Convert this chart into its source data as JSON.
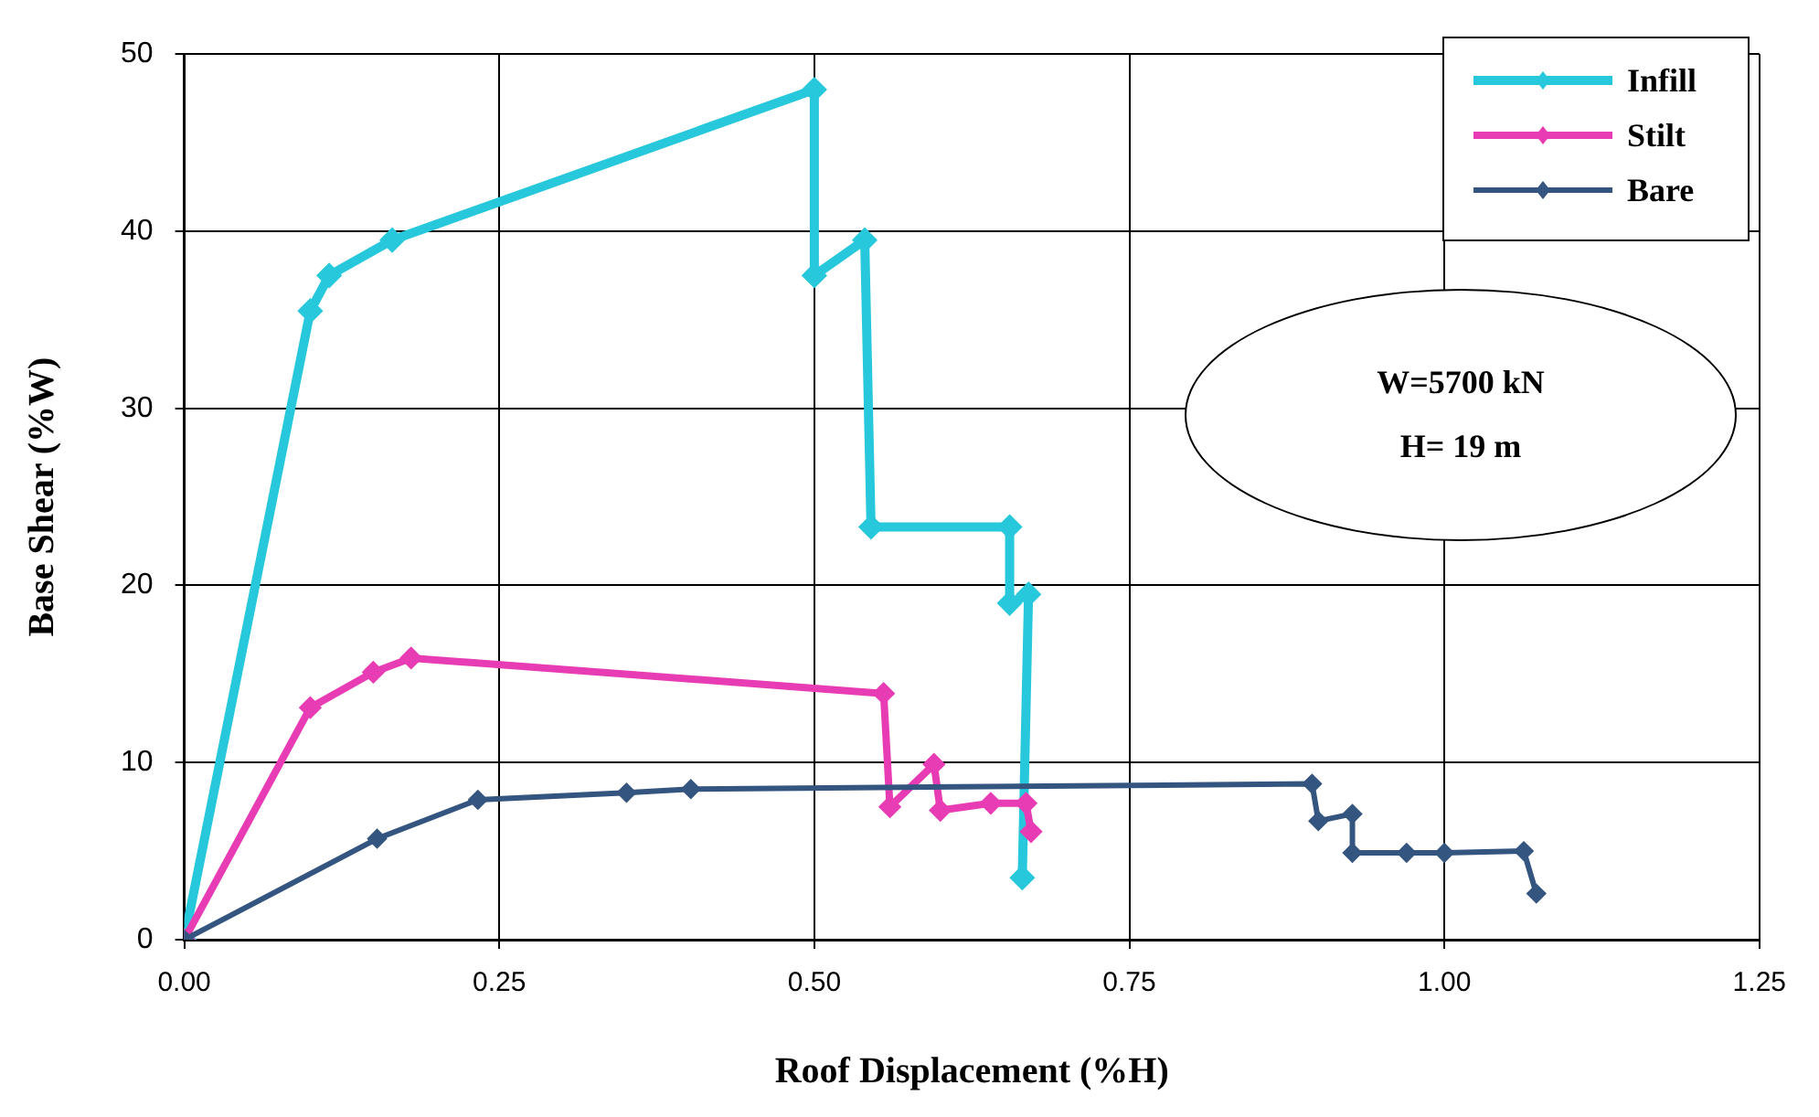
{
  "chart_data": {
    "type": "line",
    "xlabel": "Roof Displacement (%H)",
    "ylabel": "Base Shear (%W)",
    "xlim": [
      0,
      1.25
    ],
    "xticks": [
      {
        "value": 0,
        "label": "0.00"
      },
      {
        "value": 0.25,
        "label": "0.25"
      },
      {
        "value": 0.5,
        "label": "0.50"
      },
      {
        "value": 0.75,
        "label": "0.75"
      },
      {
        "value": 1,
        "label": "1.00"
      },
      {
        "value": 1.25,
        "label": "1.25"
      }
    ],
    "ylim": [
      0,
      50
    ],
    "yticks": [
      0,
      10,
      20,
      30,
      40,
      50
    ],
    "grid": true,
    "legend": "top right",
    "marker": "diamond",
    "line_style": "solid",
    "annotations": [
      "W=5700 kN",
      "H= 19 m"
    ],
    "series": [
      {
        "name": "Infill",
        "color": "#28c8dc",
        "x": [
          0,
          0.1,
          0.115,
          0.165,
          0.5,
          0.5,
          0.54,
          0.545,
          0.655,
          0.655,
          0.67,
          0.665
        ],
        "values": [
          0,
          35.5,
          37.5,
          39.5,
          48,
          37.5,
          39.5,
          23.3,
          23.3,
          19,
          19.5,
          3.5
        ]
      },
      {
        "name": "Stilt",
        "color": "#e83cb4",
        "x": [
          0,
          0.1,
          0.15,
          0.18,
          0.555,
          0.56,
          0.595,
          0.6,
          0.64,
          0.668,
          0.672
        ],
        "values": [
          0,
          13.1,
          15.1,
          15.9,
          13.9,
          7.5,
          9.9,
          7.3,
          7.7,
          7.7,
          6.1
        ]
      },
      {
        "name": "Bare",
        "color": "#34557f",
        "x": [
          0,
          0.153,
          0.233,
          0.351,
          0.402,
          0.895,
          0.9,
          0.927,
          0.927,
          0.97,
          1,
          1.063,
          1.073
        ],
        "values": [
          0,
          5.7,
          7.9,
          8.3,
          8.5,
          8.8,
          6.7,
          7.1,
          4.9,
          4.9,
          4.9,
          5,
          2.6
        ]
      }
    ]
  }
}
